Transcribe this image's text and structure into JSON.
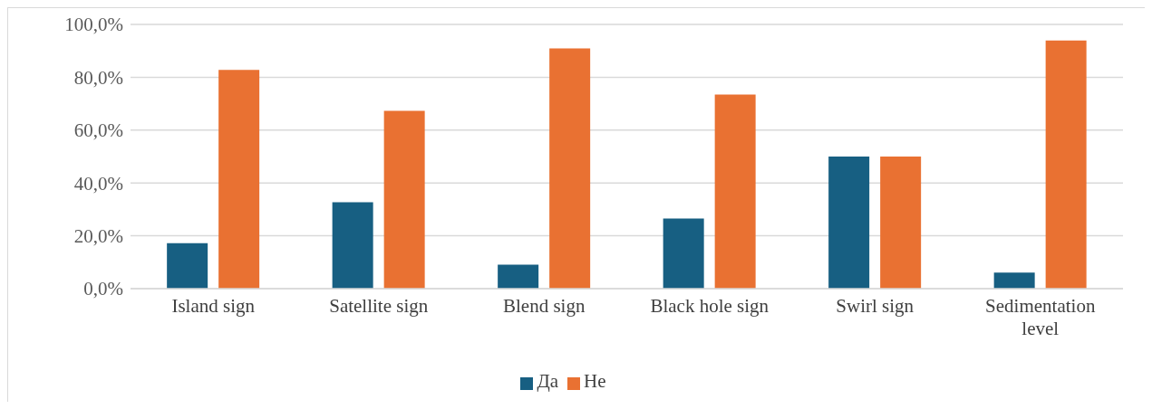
{
  "chart_data": {
    "type": "bar",
    "categories": [
      "Island sign",
      "Satellite sign",
      "Blend sign",
      "Black hole sign",
      "Swirl sign",
      "Sedimentation level"
    ],
    "series": [
      {
        "name": "Да",
        "color": "#175f82",
        "values": [
          17.2,
          32.7,
          9.1,
          26.5,
          50.0,
          6.1
        ]
      },
      {
        "name": "Не",
        "color": "#e97132",
        "values": [
          82.8,
          67.3,
          90.9,
          73.5,
          50.0,
          93.9
        ]
      }
    ],
    "ylim": [
      0,
      100
    ],
    "yticks": [
      {
        "value": 0,
        "label": "0,0%"
      },
      {
        "value": 20,
        "label": "20,0%"
      },
      {
        "value": 40,
        "label": "40,0%"
      },
      {
        "value": 60,
        "label": "60,0%"
      },
      {
        "value": 80,
        "label": "80,0%"
      },
      {
        "value": 100,
        "label": "100,0%"
      }
    ],
    "grid": "y",
    "legend": "bottom"
  }
}
